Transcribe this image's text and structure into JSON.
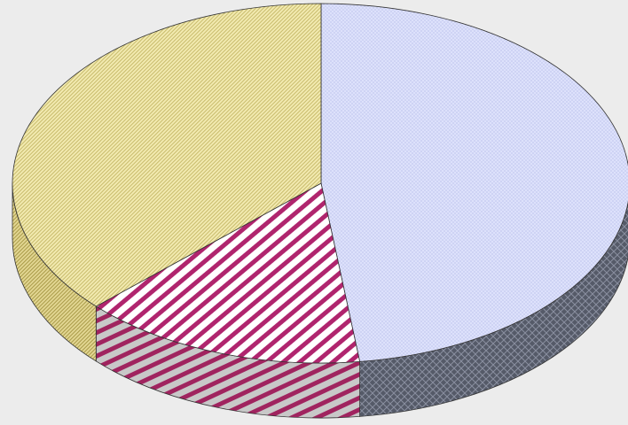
{
  "chart_data": {
    "type": "pie",
    "style": "3d-exploded-none",
    "title": "",
    "slices": [
      {
        "label": "",
        "value": 48,
        "fill_pattern": "dots",
        "top_color": "#d8dcf7",
        "side_color": "#5b6070"
      },
      {
        "label": "",
        "value": 15,
        "fill_pattern": "stripes",
        "top_color": "#b0256e",
        "side_color": "#b0256e"
      },
      {
        "label": "",
        "value": 37,
        "fill_pattern": "hatch",
        "top_color": "#efe7a9",
        "side_color": "#d8cd86"
      }
    ],
    "legend": "none",
    "background": "#ececec"
  }
}
